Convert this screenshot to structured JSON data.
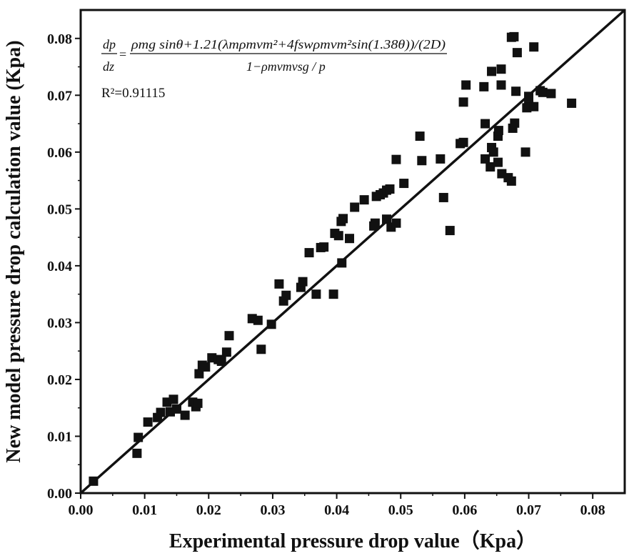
{
  "chart_data": {
    "type": "scatter",
    "xlabel": "Experimental pressure drop value（Kpa）",
    "ylabel": "New model pressure drop calculation value (Kpa)",
    "xlim": [
      0,
      0.085
    ],
    "ylim": [
      0,
      0.085
    ],
    "xticks": [
      "0.00",
      "0.01",
      "0.02",
      "0.03",
      "0.04",
      "0.05",
      "0.06",
      "0.07",
      "0.08"
    ],
    "yticks": [
      "0.00",
      "0.01",
      "0.02",
      "0.03",
      "0.04",
      "0.05",
      "0.06",
      "0.07",
      "0.08"
    ],
    "fit_line": {
      "x": [
        0,
        0.085
      ],
      "y": [
        0,
        0.085
      ]
    },
    "equation": {
      "lhs_num": "dp",
      "lhs_den": "dz",
      "numerator": "ρmg sinθ+1.21(λmρmvm²+4fswρmvm²sin(1.38θ))/(2D)",
      "denominator": "1−ρmvmvsg / p"
    },
    "r2_label": "R²=0.91115",
    "series": [
      {
        "name": "data",
        "marker": "square",
        "color": "#111111",
        "points": [
          [
            0.002,
            0.0021
          ],
          [
            0.0088,
            0.007
          ],
          [
            0.009,
            0.0098
          ],
          [
            0.0105,
            0.0125
          ],
          [
            0.012,
            0.0133
          ],
          [
            0.0125,
            0.0142
          ],
          [
            0.0135,
            0.016
          ],
          [
            0.014,
            0.0143
          ],
          [
            0.0145,
            0.0165
          ],
          [
            0.015,
            0.0148
          ],
          [
            0.0163,
            0.0137
          ],
          [
            0.0175,
            0.016
          ],
          [
            0.018,
            0.0152
          ],
          [
            0.0183,
            0.0158
          ],
          [
            0.0185,
            0.021
          ],
          [
            0.019,
            0.0225
          ],
          [
            0.0195,
            0.0222
          ],
          [
            0.0205,
            0.0238
          ],
          [
            0.0215,
            0.0235
          ],
          [
            0.022,
            0.0232
          ],
          [
            0.0228,
            0.0248
          ],
          [
            0.0232,
            0.0277
          ],
          [
            0.0268,
            0.0307
          ],
          [
            0.0277,
            0.0304
          ],
          [
            0.0282,
            0.0253
          ],
          [
            0.0298,
            0.0297
          ],
          [
            0.031,
            0.0368
          ],
          [
            0.0317,
            0.0338
          ],
          [
            0.0321,
            0.0348
          ],
          [
            0.0344,
            0.0362
          ],
          [
            0.0347,
            0.0372
          ],
          [
            0.0357,
            0.0423
          ],
          [
            0.0368,
            0.035
          ],
          [
            0.0375,
            0.0432
          ],
          [
            0.038,
            0.0433
          ],
          [
            0.0395,
            0.035
          ],
          [
            0.0397,
            0.0457
          ],
          [
            0.0403,
            0.0453
          ],
          [
            0.0407,
            0.0478
          ],
          [
            0.041,
            0.0483
          ],
          [
            0.0408,
            0.0405
          ],
          [
            0.042,
            0.0448
          ],
          [
            0.0428,
            0.0503
          ],
          [
            0.0443,
            0.0516
          ],
          [
            0.0458,
            0.047
          ],
          [
            0.046,
            0.0475
          ],
          [
            0.0462,
            0.0522
          ],
          [
            0.0468,
            0.0525
          ],
          [
            0.0473,
            0.0528
          ],
          [
            0.0478,
            0.0482
          ],
          [
            0.0478,
            0.0533
          ],
          [
            0.0483,
            0.0535
          ],
          [
            0.0485,
            0.0468
          ],
          [
            0.0493,
            0.0475
          ],
          [
            0.0493,
            0.0587
          ],
          [
            0.0505,
            0.0545
          ],
          [
            0.053,
            0.0628
          ],
          [
            0.0533,
            0.0585
          ],
          [
            0.0562,
            0.0588
          ],
          [
            0.0567,
            0.052
          ],
          [
            0.0577,
            0.0462
          ],
          [
            0.0593,
            0.0615
          ],
          [
            0.0598,
            0.0688
          ],
          [
            0.0598,
            0.0617
          ],
          [
            0.0602,
            0.0718
          ],
          [
            0.063,
            0.0715
          ],
          [
            0.0632,
            0.065
          ],
          [
            0.0632,
            0.0588
          ],
          [
            0.064,
            0.0574
          ],
          [
            0.0642,
            0.0742
          ],
          [
            0.0642,
            0.0608
          ],
          [
            0.0645,
            0.06
          ],
          [
            0.0652,
            0.0582
          ],
          [
            0.0652,
            0.0628
          ],
          [
            0.0653,
            0.0638
          ],
          [
            0.0657,
            0.0746
          ],
          [
            0.0657,
            0.0718
          ],
          [
            0.0658,
            0.0562
          ],
          [
            0.0668,
            0.0555
          ],
          [
            0.0673,
            0.0549
          ],
          [
            0.0673,
            0.0802
          ],
          [
            0.0675,
            0.0642
          ],
          [
            0.0677,
            0.0803
          ],
          [
            0.0678,
            0.0651
          ],
          [
            0.068,
            0.0707
          ],
          [
            0.0682,
            0.0775
          ],
          [
            0.0695,
            0.06
          ],
          [
            0.0697,
            0.0678
          ],
          [
            0.07,
            0.0698
          ],
          [
            0.07,
            0.0682
          ],
          [
            0.0708,
            0.0785
          ],
          [
            0.0708,
            0.068
          ],
          [
            0.0718,
            0.0708
          ],
          [
            0.0722,
            0.0705
          ],
          [
            0.0735,
            0.0703
          ],
          [
            0.0767,
            0.0686
          ]
        ]
      }
    ]
  }
}
